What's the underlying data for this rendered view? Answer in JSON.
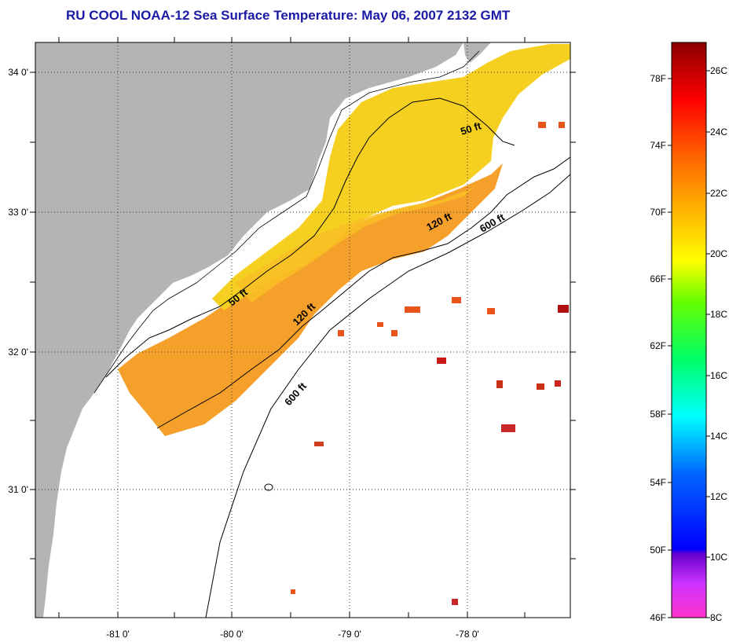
{
  "title": "RU COOL  NOAA-12  Sea Surface Temperature:  May 06, 2007 2132 GMT",
  "map": {
    "longitude_labels": [
      "-81 0'",
      "-80 0'",
      "-79 0'",
      "-78 0'"
    ],
    "latitude_labels": [
      "34 0'",
      "33 0'",
      "32 0'",
      "31 0'"
    ],
    "contour_labels": [
      {
        "text": "50 ft",
        "name": "contour-label-50ft-north"
      },
      {
        "text": "120 ft",
        "name": "contour-label-120ft-north"
      },
      {
        "text": "600 ft",
        "name": "contour-label-600ft-north"
      },
      {
        "text": "50 ft",
        "name": "contour-label-50ft-south"
      },
      {
        "text": "120 ft",
        "name": "contour-label-120ft-south"
      },
      {
        "text": "600 ft",
        "name": "contour-label-600ft-south"
      }
    ],
    "colors": {
      "land": "#b4b4b4",
      "ocean_no_data": "#ffffff",
      "warm_water": "#f7a61e",
      "shelf_water": "#f3d21c"
    }
  },
  "colorbar": {
    "fahrenheit_labels": [
      "78F",
      "74F",
      "70F",
      "66F",
      "62F",
      "58F",
      "54F",
      "50F",
      "46F"
    ],
    "celsius_labels": [
      "26C",
      "24C",
      "22C",
      "20C",
      "18C",
      "16C",
      "14C",
      "12C",
      "10C",
      "8C"
    ],
    "colors": [
      "#ff33cc",
      "#9900ff",
      "#0000ff",
      "#0099ff",
      "#00ffff",
      "#00ff66",
      "#ccff00",
      "#ffff00",
      "#ff9900",
      "#ff0000",
      "#8b0000"
    ]
  }
}
